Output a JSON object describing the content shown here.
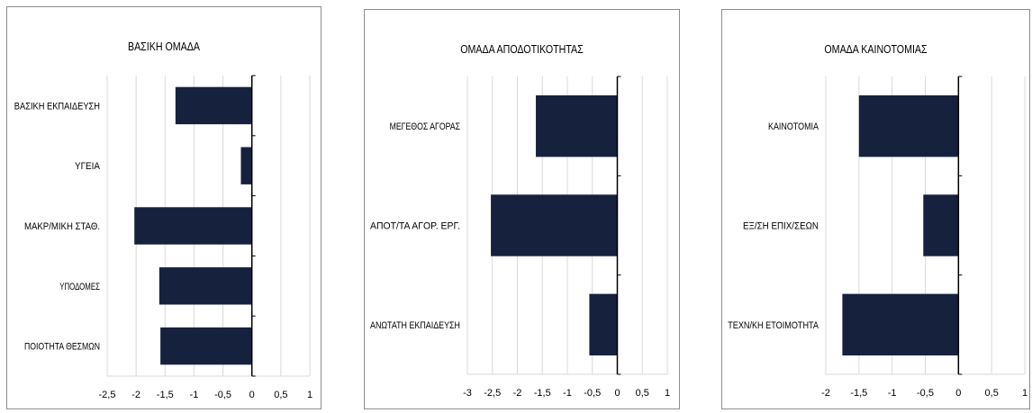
{
  "colors": {
    "bar": "#16213e",
    "grid": "#d9d9d9",
    "axis": "#000000"
  },
  "chart_data": [
    {
      "type": "bar",
      "orientation": "horizontal",
      "title": "ΒΑΣΙΚΗ ΟΜΑΔΑ",
      "categories": [
        "ΒΑΣΙΚΗ ΕΚΠΑΙΔΕΥΣΗ",
        "ΥΓΕΙΑ",
        "ΜΑΚΡ/ΜΙΚΗ ΣΤΑΘ.",
        "ΥΠΟΔΟΜΕΣ",
        "ΠΟΙΟΤΗΤΑ ΘΕΣΜΩΝ"
      ],
      "values": [
        -1.32,
        -0.19,
        -2.03,
        -1.6,
        -1.58
      ],
      "xlim": [
        -2.5,
        1
      ],
      "ticks": [
        -2.5,
        -2,
        -1.5,
        -1,
        -0.5,
        0,
        0.5,
        1
      ],
      "tick_labels": [
        "-2,5",
        "-2",
        "-1,5",
        "-1",
        "-0,5",
        "0",
        "0,5",
        "1"
      ],
      "grid": true,
      "legend": "none"
    },
    {
      "type": "bar",
      "orientation": "horizontal",
      "title": "ΟΜΑΔΑ ΑΠΟΔΟΤΙΚΟΤΗΤΑΣ",
      "categories": [
        "ΜΕΓΕΘΟΣ ΑΓΟΡΑΣ",
        "ΑΠΟΤ/ΤΑ ΑΓΟΡ. ΕΡΓ.",
        "ΑΝΩΤΑΤΗ ΕΚΠΑΙΔΕΥΣΗ"
      ],
      "values": [
        -1.63,
        -2.53,
        -0.56
      ],
      "xlim": [
        -3,
        1
      ],
      "ticks": [
        -3,
        -2.5,
        -2,
        -1.5,
        -1,
        -0.5,
        0,
        0.5,
        1
      ],
      "tick_labels": [
        "-3",
        "-2,5",
        "-2",
        "-1,5",
        "-1",
        "-0,5",
        "0",
        "0,5",
        "1"
      ],
      "grid": true,
      "legend": "none"
    },
    {
      "type": "bar",
      "orientation": "horizontal",
      "title": "ΟΜΑΔΑ ΚΑΙΝΟΤΟΜΙΑΣ",
      "categories": [
        "ΚΑΙΝΟΤΟΜΙΑ",
        "ΕΞ/ΣΗ ΕΠΙΧ/ΣΕΩΝ",
        "ΤΕΧΝ/ΚΗ ΕΤΟΙΜΟΤΗΤΑ"
      ],
      "values": [
        -1.5,
        -0.53,
        -1.75
      ],
      "xlim": [
        -2,
        1
      ],
      "ticks": [
        -2,
        -1.5,
        -1,
        -0.5,
        0,
        0.5,
        1
      ],
      "tick_labels": [
        "-2",
        "-1,5",
        "-1",
        "-0,5",
        "0",
        "0,5",
        "1"
      ],
      "grid": true,
      "legend": "none"
    }
  ]
}
